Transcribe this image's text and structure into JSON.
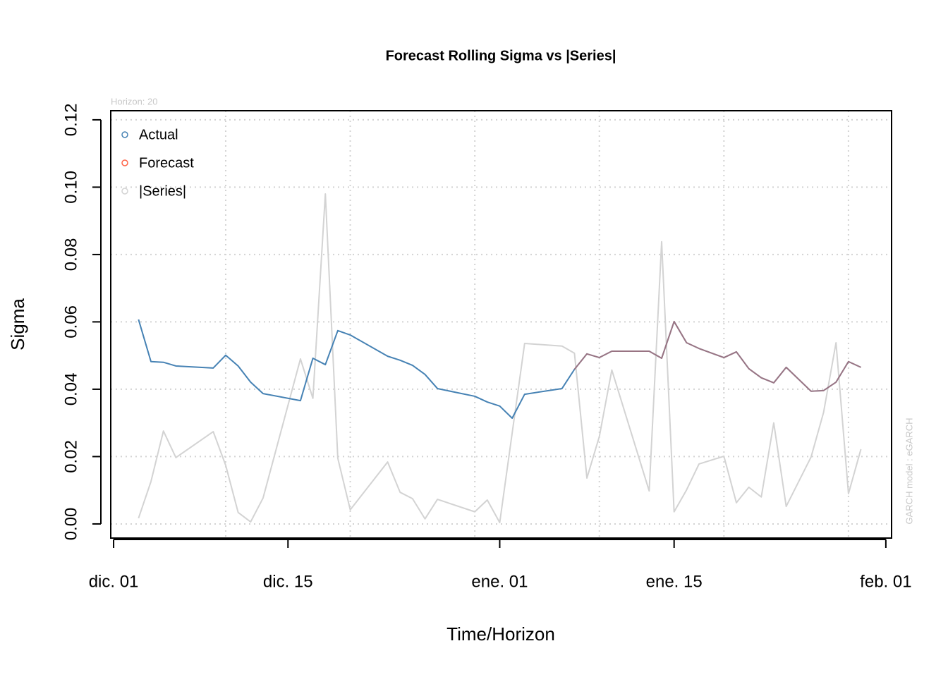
{
  "chart_data": {
    "type": "line",
    "title": "Forecast Rolling Sigma vs |Series|",
    "xlabel": "Time/Horizon",
    "ylabel": "Sigma",
    "annotations": [
      "Horizon: 20",
      "GARCH model :  eGARCH"
    ],
    "x": [
      2,
      3,
      4,
      5,
      8,
      9,
      10,
      11,
      12,
      15,
      16,
      17,
      18,
      19,
      22,
      23,
      24,
      25,
      26,
      29,
      30,
      31,
      32,
      33,
      36,
      37,
      38,
      39,
      40,
      43,
      44,
      45,
      46,
      47,
      49,
      50,
      51,
      52,
      53,
      54,
      56,
      57,
      58,
      59,
      60
    ],
    "series": [
      {
        "name": "Actual",
        "color": "#4682B4",
        "values": [
          0.0607,
          0.0482,
          0.048,
          0.0469,
          0.0463,
          0.0501,
          0.0469,
          0.0421,
          0.0387,
          0.0366,
          0.0492,
          0.0473,
          0.0574,
          0.0561,
          0.0498,
          0.0486,
          0.0471,
          0.0444,
          0.0402,
          0.0379,
          0.0362,
          0.035,
          0.0314,
          0.0385,
          0.0402,
          0.0459,
          0.0505,
          0.0494,
          0.0513,
          0.0513,
          0.0492,
          0.0601,
          0.0538,
          0.0521,
          0.0494,
          0.0511,
          0.0461,
          0.0434,
          0.0419,
          0.0465,
          0.0394,
          0.0396,
          0.0421,
          0.0482,
          0.0465
        ]
      },
      {
        "name": "Forecast",
        "color": "#FF6347",
        "values": [
          null,
          null,
          null,
          null,
          null,
          null,
          null,
          null,
          null,
          null,
          null,
          null,
          null,
          null,
          null,
          null,
          null,
          null,
          null,
          null,
          null,
          null,
          null,
          null,
          null,
          0.0459,
          0.0505,
          0.0494,
          0.0513,
          0.0513,
          0.0492,
          0.0601,
          0.0538,
          0.0521,
          0.0494,
          0.0511,
          0.0461,
          0.0434,
          0.0419,
          0.0465,
          0.0394,
          0.0396,
          0.0421,
          0.0482,
          0.0465
        ]
      },
      {
        "name": "|Series|",
        "color": "#D3D3D3",
        "values": [
          0.0017,
          0.0126,
          0.0276,
          0.0197,
          0.0274,
          0.0174,
          0.0034,
          0.0006,
          0.0077,
          0.049,
          0.0373,
          0.098,
          0.0195,
          0.0042,
          0.0184,
          0.0094,
          0.0075,
          0.0015,
          0.0073,
          0.0036,
          0.0071,
          0.0004,
          0.027,
          0.0536,
          0.0528,
          0.0507,
          0.0136,
          0.026,
          0.0457,
          0.0098,
          0.0838,
          0.0036,
          0.0101,
          0.0178,
          0.0201,
          0.0063,
          0.0109,
          0.008,
          0.03,
          0.0052,
          0.0199,
          0.0331,
          0.0538,
          0.009,
          0.0222
        ]
      }
    ],
    "xlim": [
      -0.23,
      62.46
    ],
    "ylim": [
      -0.0042,
      0.1227
    ],
    "xticks": [
      {
        "value": 0,
        "label": "dic. 01"
      },
      {
        "value": 14,
        "label": "dic. 15"
      },
      {
        "value": 31,
        "label": "ene. 01"
      },
      {
        "value": 45,
        "label": "ene. 15"
      },
      {
        "value": 62,
        "label": "feb. 01"
      }
    ],
    "yticks": [
      {
        "value": 0,
        "label": "0.00"
      },
      {
        "value": 0.02,
        "label": "0.02"
      },
      {
        "value": 0.04,
        "label": "0.04"
      },
      {
        "value": 0.06,
        "label": "0.06"
      },
      {
        "value": 0.08,
        "label": "0.08"
      },
      {
        "value": 0.1,
        "label": "0.10"
      },
      {
        "value": 0.12,
        "label": "0.12"
      }
    ],
    "xgrid": [
      9,
      19,
      29,
      39,
      49,
      59
    ],
    "grid": true,
    "legend": "top-left"
  }
}
